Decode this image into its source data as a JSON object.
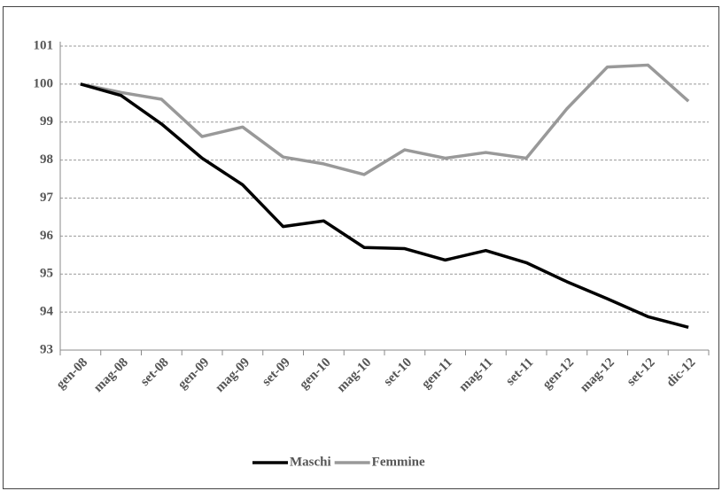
{
  "chart_data": {
    "type": "line",
    "categories": [
      "gen-08",
      "mag-08",
      "set-08",
      "gen-09",
      "mag-09",
      "set-09",
      "gen-10",
      "mag-10",
      "set-10",
      "gen-11",
      "mag-11",
      "set-11",
      "gen-12",
      "mag-12",
      "set-12",
      "dic-12"
    ],
    "series": [
      {
        "name": "Maschi",
        "color": "#000000",
        "values": [
          100,
          99.7,
          98.95,
          98.05,
          97.35,
          96.25,
          96.4,
          95.7,
          95.67,
          95.37,
          95.62,
          95.3,
          94.8,
          94.35,
          93.88,
          93.6
        ]
      },
      {
        "name": "Femmine",
        "color": "#999999",
        "values": [
          100,
          99.78,
          99.6,
          98.62,
          98.87,
          98.08,
          97.9,
          97.62,
          98.27,
          98.05,
          98.2,
          98.05,
          99.35,
          100.45,
          100.5,
          99.55
        ]
      }
    ],
    "ylim": [
      93,
      101
    ],
    "yticks": [
      93,
      94,
      95,
      96,
      97,
      98,
      99,
      100,
      101
    ],
    "grid": true,
    "legend": "bottom"
  }
}
